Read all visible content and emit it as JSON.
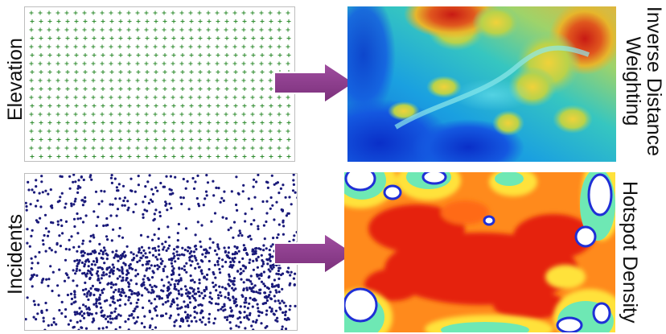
{
  "rows": [
    {
      "input_label": "Elevation",
      "output_label_line1": "Inverse Distance",
      "output_label_line2": "Weighting",
      "input_marker": "plus-grid",
      "arrow_icon": "right-arrow-icon"
    },
    {
      "input_label": "Incidents",
      "output_label": "Hotspot Density",
      "input_marker": "dots",
      "arrow_icon": "right-arrow-icon"
    }
  ],
  "colors": {
    "plus_marker": "#2e8b2e",
    "dot_marker": "#1a1a7a",
    "arrow_fill": "#8e3b8e",
    "arrow_edge": "#6d2a6d"
  }
}
